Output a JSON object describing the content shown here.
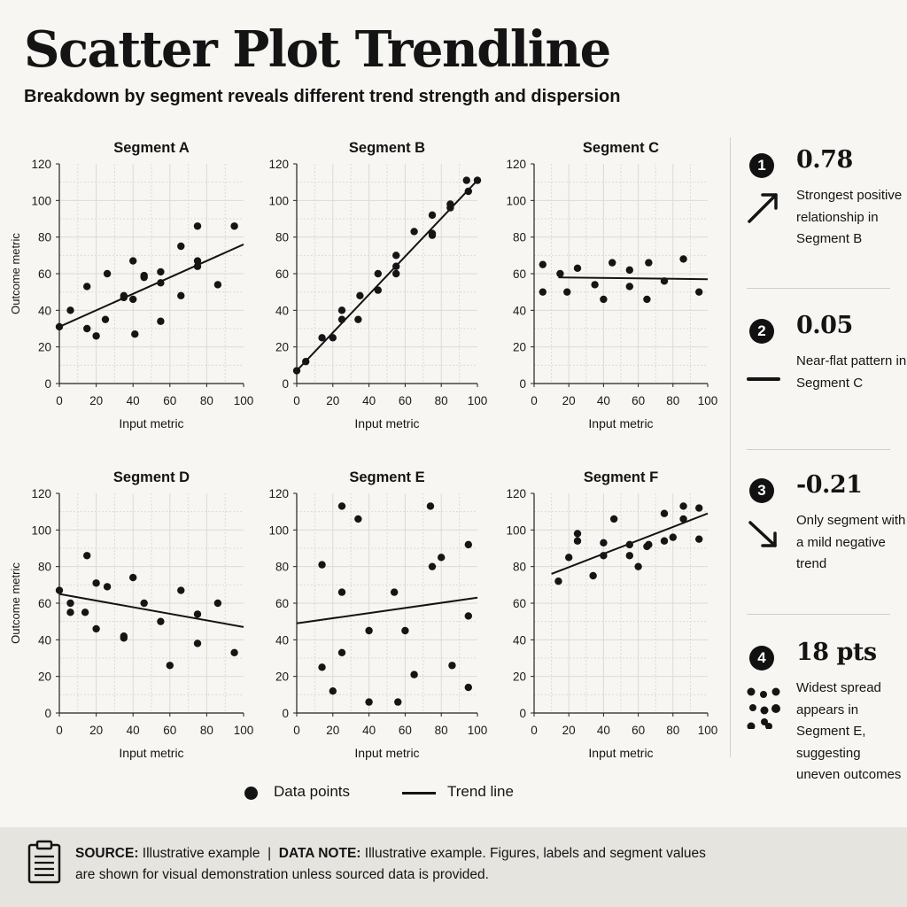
{
  "header": {
    "title": "Scatter Plot Trendline",
    "subtitle": "Breakdown by segment reveals different trend strength and dispersion"
  },
  "chart_data": [
    {
      "type": "scatter",
      "title": "Segment A",
      "xlabel": "Input metric",
      "ylabel": "Outcome metric",
      "xlim": [
        0,
        100
      ],
      "ylim": [
        0,
        120
      ],
      "xticks": [
        0,
        20,
        40,
        60,
        80,
        100
      ],
      "yticks": [
        0,
        20,
        40,
        60,
        80,
        100,
        120
      ],
      "points": [
        [
          0,
          31
        ],
        [
          6,
          40
        ],
        [
          15,
          30
        ],
        [
          15,
          53
        ],
        [
          20,
          26
        ],
        [
          25,
          35
        ],
        [
          26,
          60
        ],
        [
          35,
          47
        ],
        [
          35,
          48
        ],
        [
          40,
          46
        ],
        [
          40,
          67
        ],
        [
          41,
          27
        ],
        [
          46,
          58
        ],
        [
          46,
          59
        ],
        [
          55,
          34
        ],
        [
          55,
          55
        ],
        [
          55,
          61
        ],
        [
          66,
          48
        ],
        [
          66,
          75
        ],
        [
          75,
          67
        ],
        [
          75,
          64
        ],
        [
          75,
          86
        ],
        [
          86,
          54
        ],
        [
          95,
          86
        ]
      ],
      "trend": [
        [
          0,
          31
        ],
        [
          100,
          76
        ]
      ]
    },
    {
      "type": "scatter",
      "title": "Segment B",
      "xlabel": "Input metric",
      "ylabel": "",
      "xlim": [
        0,
        100
      ],
      "ylim": [
        0,
        120
      ],
      "xticks": [
        0,
        20,
        40,
        60,
        80,
        100
      ],
      "yticks": [
        0,
        20,
        40,
        60,
        80,
        100,
        120
      ],
      "points": [
        [
          0,
          7
        ],
        [
          5,
          12
        ],
        [
          14,
          25
        ],
        [
          20,
          25
        ],
        [
          25,
          35
        ],
        [
          25,
          40
        ],
        [
          34,
          35
        ],
        [
          35,
          48
        ],
        [
          45,
          51
        ],
        [
          45,
          60
        ],
        [
          55,
          60
        ],
        [
          55,
          64
        ],
        [
          55,
          70
        ],
        [
          65,
          83
        ],
        [
          75,
          81
        ],
        [
          75,
          82
        ],
        [
          75,
          92
        ],
        [
          85,
          96
        ],
        [
          85,
          98
        ],
        [
          94,
          111
        ],
        [
          95,
          105
        ],
        [
          100,
          111
        ]
      ],
      "trend": [
        [
          0,
          7
        ],
        [
          100,
          111
        ]
      ]
    },
    {
      "type": "scatter",
      "title": "Segment C",
      "xlabel": "Input metric",
      "ylabel": "",
      "xlim": [
        0,
        100
      ],
      "ylim": [
        0,
        120
      ],
      "xticks": [
        0,
        20,
        40,
        60,
        80,
        100
      ],
      "yticks": [
        0,
        20,
        40,
        60,
        80,
        100,
        120
      ],
      "points": [
        [
          5,
          50
        ],
        [
          5,
          65
        ],
        [
          15,
          60
        ],
        [
          19,
          50
        ],
        [
          25,
          63
        ],
        [
          35,
          54
        ],
        [
          40,
          46
        ],
        [
          45,
          66
        ],
        [
          55,
          53
        ],
        [
          55,
          62
        ],
        [
          65,
          46
        ],
        [
          66,
          66
        ],
        [
          75,
          56
        ],
        [
          86,
          68
        ],
        [
          95,
          50
        ]
      ],
      "trend": [
        [
          14,
          58
        ],
        [
          100,
          57
        ]
      ]
    },
    {
      "type": "scatter",
      "title": "Segment D",
      "xlabel": "Input metric",
      "ylabel": "Outcome metric",
      "xlim": [
        0,
        100
      ],
      "ylim": [
        0,
        120
      ],
      "xticks": [
        0,
        20,
        40,
        60,
        80,
        100
      ],
      "yticks": [
        0,
        20,
        40,
        60,
        80,
        100,
        120
      ],
      "points": [
        [
          0,
          67
        ],
        [
          6,
          55
        ],
        [
          6,
          60
        ],
        [
          14,
          55
        ],
        [
          15,
          86
        ],
        [
          20,
          46
        ],
        [
          20,
          71
        ],
        [
          26,
          69
        ],
        [
          35,
          41
        ],
        [
          35,
          42
        ],
        [
          40,
          74
        ],
        [
          46,
          60
        ],
        [
          55,
          50
        ],
        [
          60,
          26
        ],
        [
          66,
          67
        ],
        [
          75,
          54
        ],
        [
          75,
          38
        ],
        [
          86,
          60
        ],
        [
          95,
          33
        ]
      ],
      "trend": [
        [
          0,
          65
        ],
        [
          100,
          47
        ]
      ]
    },
    {
      "type": "scatter",
      "title": "Segment E",
      "xlabel": "Input metric",
      "ylabel": "",
      "xlim": [
        0,
        100
      ],
      "ylim": [
        0,
        120
      ],
      "xticks": [
        0,
        20,
        40,
        60,
        80,
        100
      ],
      "yticks": [
        0,
        20,
        40,
        60,
        80,
        100,
        120
      ],
      "points": [
        [
          14,
          81
        ],
        [
          14,
          25
        ],
        [
          20,
          12
        ],
        [
          25,
          113
        ],
        [
          25,
          66
        ],
        [
          25,
          33
        ],
        [
          34,
          106
        ],
        [
          40,
          45
        ],
        [
          40,
          6
        ],
        [
          54,
          66
        ],
        [
          56,
          6
        ],
        [
          60,
          45
        ],
        [
          65,
          21
        ],
        [
          74,
          113
        ],
        [
          75,
          80
        ],
        [
          80,
          85
        ],
        [
          86,
          26
        ],
        [
          95,
          92
        ],
        [
          95,
          53
        ],
        [
          95,
          14
        ]
      ],
      "trend": [
        [
          0,
          49
        ],
        [
          100,
          63
        ]
      ]
    },
    {
      "type": "scatter",
      "title": "Segment F",
      "xlabel": "Input metric",
      "ylabel": "",
      "xlim": [
        0,
        100
      ],
      "ylim": [
        0,
        120
      ],
      "xticks": [
        0,
        20,
        40,
        60,
        80,
        100
      ],
      "yticks": [
        0,
        20,
        40,
        60,
        80,
        100,
        120
      ],
      "points": [
        [
          14,
          72
        ],
        [
          20,
          85
        ],
        [
          25,
          94
        ],
        [
          25,
          98
        ],
        [
          34,
          75
        ],
        [
          40,
          86
        ],
        [
          40,
          93
        ],
        [
          46,
          106
        ],
        [
          55,
          86
        ],
        [
          55,
          92
        ],
        [
          60,
          80
        ],
        [
          65,
          91
        ],
        [
          66,
          92
        ],
        [
          75,
          109
        ],
        [
          75,
          94
        ],
        [
          80,
          96
        ],
        [
          86,
          113
        ],
        [
          86,
          106
        ],
        [
          95,
          95
        ],
        [
          95,
          112
        ]
      ],
      "trend": [
        [
          10,
          76
        ],
        [
          100,
          109
        ]
      ]
    }
  ],
  "insights": [
    {
      "number": "1",
      "value": "0.78",
      "icon": "arrow-up-right-icon",
      "text": "Strongest positive relationship in Segment B"
    },
    {
      "number": "2",
      "value": "0.05",
      "icon": "flat-line-icon",
      "text": "Near-flat pattern in Segment C"
    },
    {
      "number": "3",
      "value": "-0.21",
      "icon": "arrow-down-right-icon",
      "text": "Only segment with a mild negative trend"
    },
    {
      "number": "4",
      "value": "18 pts",
      "icon": "scattered-dots-icon",
      "text": "Widest spread appears in Segment E, suggesting uneven outcomes"
    }
  ],
  "legend": {
    "points_label": "Data points",
    "trend_label": "Trend line"
  },
  "footer": {
    "source_label": "SOURCE:",
    "source_value": "Illustrative example",
    "divider": "|",
    "note_label": "DATA NOTE:",
    "note_value": "Illustrative example. Figures, labels and segment values are shown for visual demonstration unless sourced data is provided."
  }
}
